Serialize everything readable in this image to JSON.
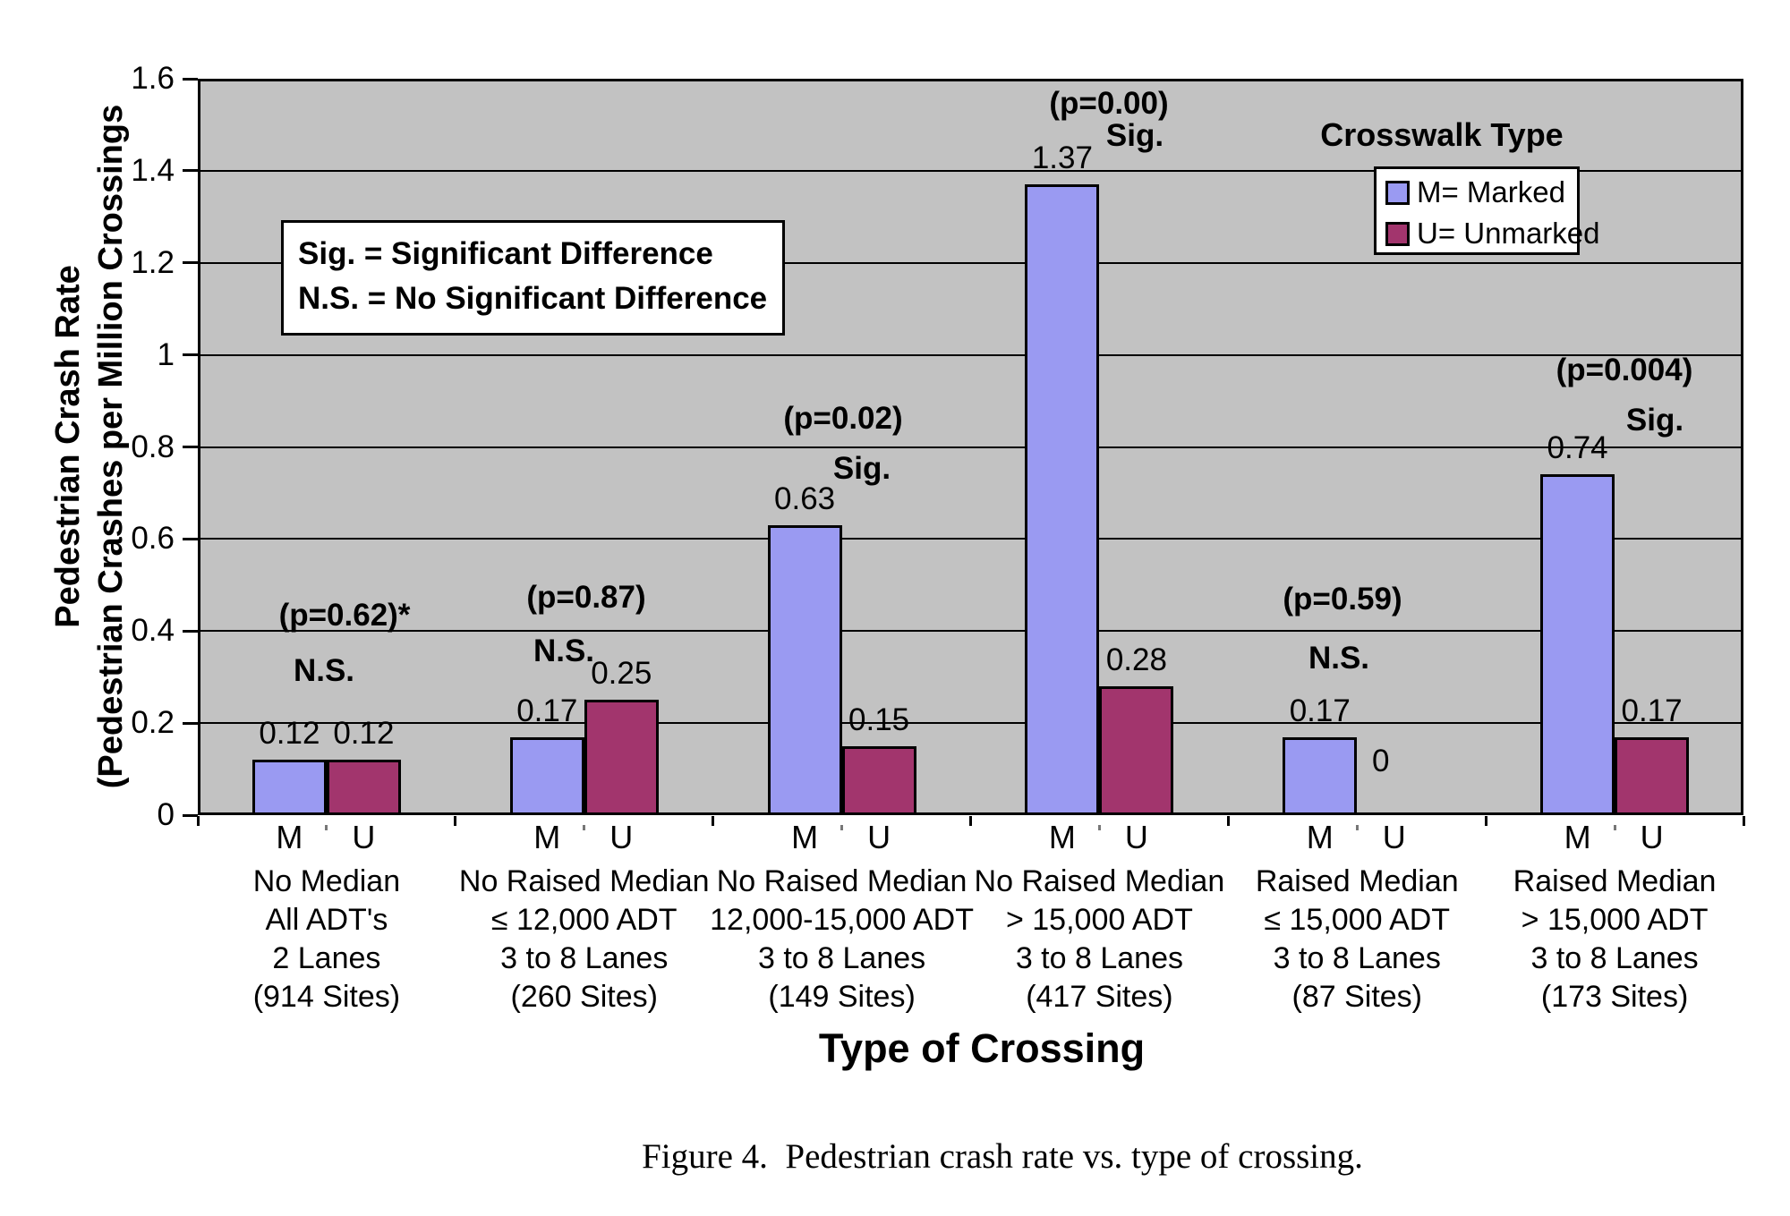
{
  "figure": {
    "caption": "Figure 4.  Pedestrian crash rate vs. type of crossing."
  },
  "chart_data": {
    "type": "bar",
    "title": "",
    "xlabel": "Type of Crossing",
    "ylabel_line1": "Pedestrian Crash Rate",
    "ylabel_line2": "(Pedestrian Crashes per Million Crossings",
    "ylim": [
      0,
      1.6
    ],
    "ytick_step": 0.2,
    "yticks": [
      "0",
      "0.2",
      "0.4",
      "0.6",
      "0.8",
      "1",
      "1.2",
      "1.4",
      "1.6"
    ],
    "grid": "horizontal-black-on-gray",
    "plot_bg_color": "#c2c2c2",
    "note_box": [
      "Sig. = Significant Difference",
      "N.S. = No Significant Difference"
    ],
    "legend": {
      "title": "Crosswalk Type",
      "position": "top-right",
      "items": [
        {
          "label": "M= Marked",
          "color": "#9a9af2"
        },
        {
          "label": "U= Unmarked",
          "color": "#a2356d"
        }
      ]
    },
    "series": [
      {
        "name": "M= Marked",
        "key": "M",
        "color": "#9a9af2",
        "values": [
          0.12,
          0.17,
          0.63,
          1.37,
          0.17,
          0.74
        ]
      },
      {
        "name": "U= Unmarked",
        "key": "U",
        "color": "#a2356d",
        "values": [
          0.12,
          0.25,
          0.15,
          0.28,
          0,
          0.17
        ]
      }
    ],
    "bar_value_labels": [
      [
        "0.12",
        "0.12"
      ],
      [
        "0.17",
        "0.25"
      ],
      [
        "0.63",
        "0.15"
      ],
      [
        "1.37",
        "0.28"
      ],
      [
        "0.17",
        "0"
      ],
      [
        "0.74",
        "0.17"
      ]
    ],
    "groups": [
      {
        "p_label": "(p=0.62)*",
        "sig_label": "N.S.",
        "series_letters": [
          "M",
          "U"
        ],
        "category_lines": [
          "No Median",
          "All ADT's",
          "2 Lanes",
          "(914 Sites)"
        ]
      },
      {
        "p_label": "(p=0.87)",
        "sig_label": "N.S.",
        "series_letters": [
          "M",
          "U"
        ],
        "category_lines": [
          "No Raised Median",
          "≤ 12,000 ADT",
          "3 to 8 Lanes",
          "(260 Sites)"
        ]
      },
      {
        "p_label": "(p=0.02)",
        "sig_label": "Sig.",
        "series_letters": [
          "M",
          "U"
        ],
        "category_lines": [
          "No Raised Median",
          "12,000-15,000 ADT",
          "3 to 8 Lanes",
          "(149 Sites)"
        ]
      },
      {
        "p_label": "(p=0.00)",
        "sig_label": "Sig.",
        "series_letters": [
          "M",
          "U"
        ],
        "category_lines": [
          "No Raised Median",
          "> 15,000 ADT",
          "3 to 8 Lanes",
          "(417 Sites)"
        ]
      },
      {
        "p_label": "(p=0.59)",
        "sig_label": "N.S.",
        "series_letters": [
          "M",
          "U"
        ],
        "category_lines": [
          "Raised Median",
          "≤ 15,000 ADT",
          "3 to 8 Lanes",
          "(87 Sites)"
        ]
      },
      {
        "p_label": "(p=0.004)",
        "sig_label": "Sig.",
        "series_letters": [
          "M",
          "U"
        ],
        "category_lines": [
          "Raised Median",
          "> 15,000 ADT",
          "3 to 8 Lanes",
          "(173 Sites)"
        ]
      }
    ]
  }
}
